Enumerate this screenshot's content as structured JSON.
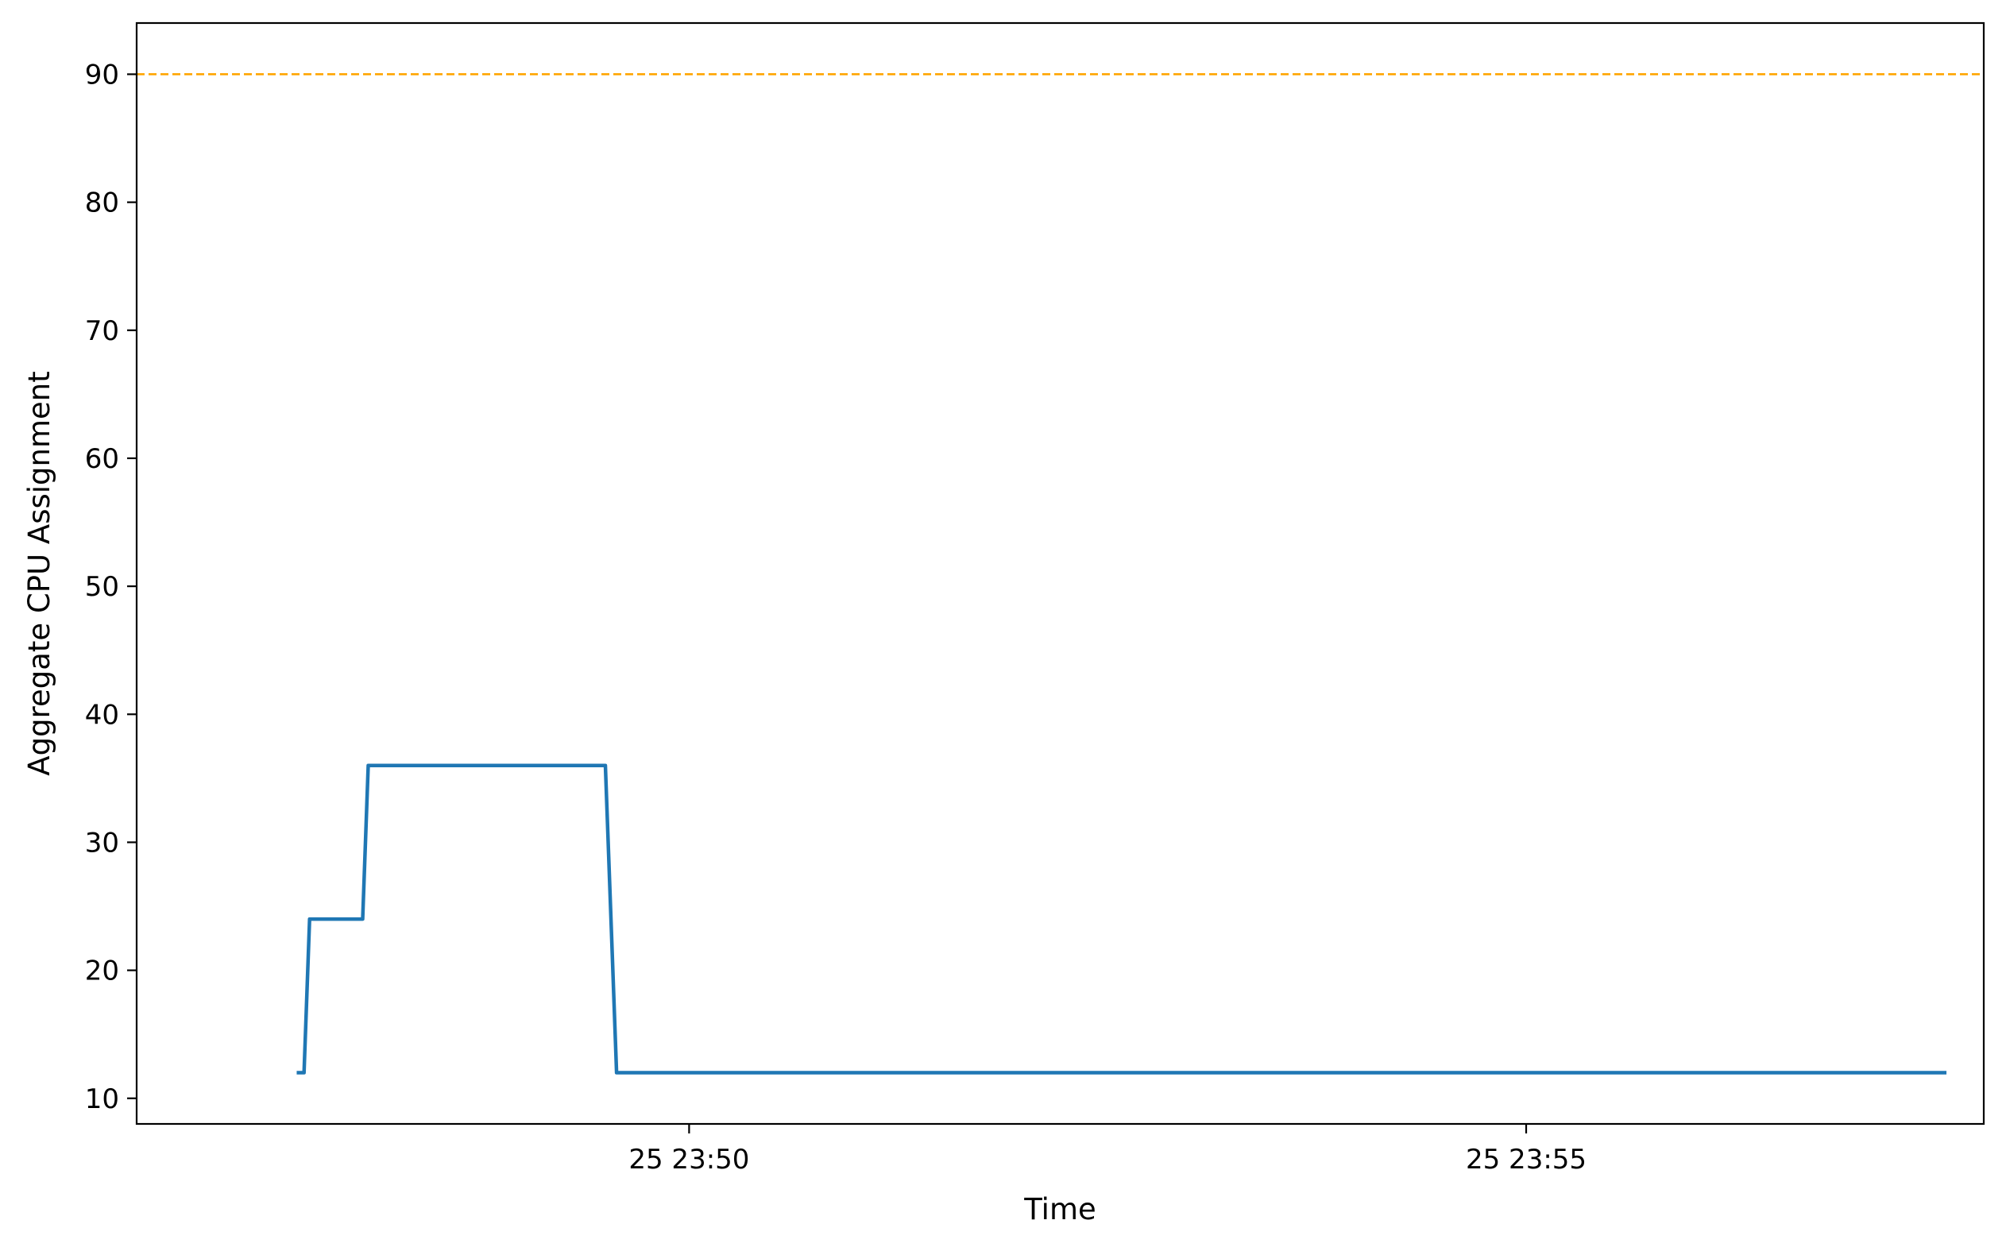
{
  "chart_data": {
    "type": "line",
    "title": "",
    "xlabel": "Time",
    "ylabel": "Aggregate CPU Assignment",
    "x_unit": "time (HH:MM:SS)",
    "xlim": [
      "23:46:42",
      "23:57:44"
    ],
    "ylim": [
      8,
      94
    ],
    "yticks": [
      10,
      20,
      30,
      40,
      50,
      60,
      70,
      80,
      90
    ],
    "xticks": [
      {
        "value": "23:50:00",
        "label": "25 23:50"
      },
      {
        "value": "23:55:00",
        "label": "25 23:55"
      }
    ],
    "grid": false,
    "legend": "none",
    "series": [
      {
        "color": "#1f77b4",
        "points": [
          {
            "x": "23:47:40",
            "y": 12
          },
          {
            "x": "23:47:42",
            "y": 12
          },
          {
            "x": "23:47:44",
            "y": 24
          },
          {
            "x": "23:48:03",
            "y": 24
          },
          {
            "x": "23:48:05",
            "y": 36
          },
          {
            "x": "23:49:30",
            "y": 36
          },
          {
            "x": "23:49:34",
            "y": 12
          },
          {
            "x": "23:57:30",
            "y": 12
          }
        ]
      }
    ],
    "reference_lines": [
      {
        "axis": "y",
        "value": 90,
        "color": "#ffa500",
        "style": "dashed"
      }
    ]
  }
}
